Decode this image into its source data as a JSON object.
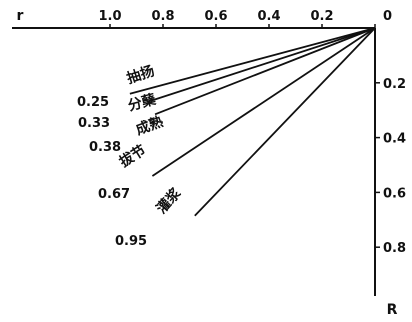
{
  "chart_data": {
    "type": "line",
    "x_axis": {
      "name": "r",
      "ticks": [
        "1.0",
        "0.8",
        "0.6",
        "0.4",
        "0.2",
        "0"
      ],
      "values": [
        1.0,
        0.8,
        0.6,
        0.4,
        0.2,
        0
      ],
      "range": [
        1.0,
        0
      ]
    },
    "y_axis": {
      "name": "R",
      "ticks": [
        "0.2",
        "0.4",
        "0.6",
        "0.8"
      ],
      "values": [
        0.2,
        0.4,
        0.6,
        0.8
      ],
      "range": [
        0,
        0.9
      ]
    },
    "series": [
      {
        "stage": "抽扬",
        "ratio": "0.25",
        "end": {
          "r": 0.925,
          "R": 0.24
        }
      },
      {
        "stage": "分蘖",
        "ratio": "0.33",
        "end": {
          "r": 0.86,
          "R": 0.27
        }
      },
      {
        "stage": "成熟",
        "ratio": "0.38",
        "end": {
          "r": 0.83,
          "R": 0.315
        }
      },
      {
        "stage": "拔节",
        "ratio": "0.67",
        "end": {
          "r": 0.84,
          "R": 0.54
        }
      },
      {
        "stage": "灌浆",
        "ratio": "0.95",
        "end": {
          "r": 0.68,
          "R": 0.685
        }
      }
    ]
  }
}
